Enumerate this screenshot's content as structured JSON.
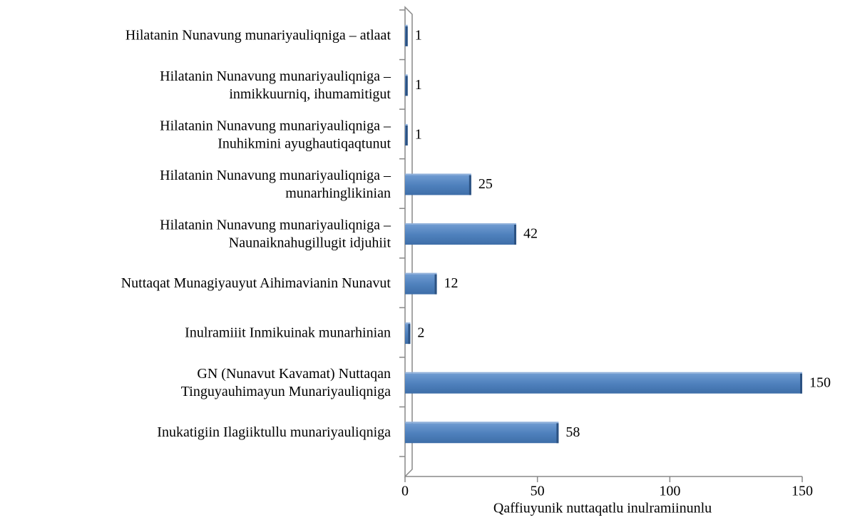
{
  "chart_data": {
    "type": "bar",
    "orientation": "horizontal",
    "x_label": "Qaffiuyunik nuttaqatlu inulramiinunlu",
    "categories": [
      "Hilatanin Nunavung munariyauliqniga – atlaat",
      "Hilatanin Nunavung munariyauliqniga –\ninmikkuurniq, ihumamitigut",
      "Hilatanin Nunavung munariyauliqniga –\nInuhikmini ayughautiqaqtunut",
      "Hilatanin Nunavung munariyauliqniga –\nmunarhinglikinian",
      "Hilatanin Nunavung munariyauliqniga –\nNaunaiknahugillugit idjuhiit",
      "Nuttaqat Munagiyauyut Aihimavianin Nunavut",
      "Inulramiiit  Inmikuinak munarhinian",
      "GN (Nunavut Kavamat) Nuttaqan\nTinguyauhimayun Munariyauliqniga",
      "Inukatigiin Ilagiiktullu munariyauliqniga"
    ],
    "values": [
      1,
      1,
      1,
      25,
      42,
      12,
      2,
      150,
      58
    ],
    "color": "#4f81bd",
    "xlim": [
      0,
      150
    ],
    "xticks": [
      0,
      50,
      100,
      150
    ],
    "grid": false
  }
}
